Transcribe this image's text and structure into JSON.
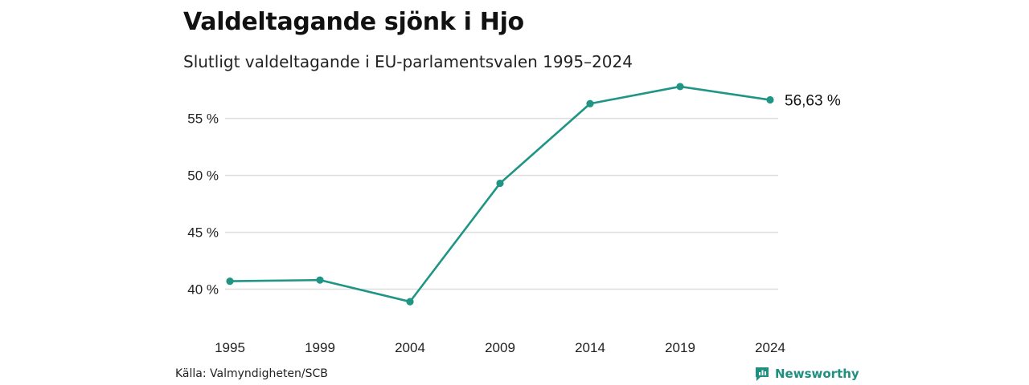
{
  "header": {
    "title": "Valdeltagande sjönk i Hjo",
    "subtitle": "Slutligt valdeltagande i EU-parlamentsvalen 1995–2024"
  },
  "footer": {
    "source": "Källa: Valmyndigheten/SCB",
    "brand": "Newsworthy",
    "brand_icon": "newsworthy-logo-icon",
    "brand_color": "#1f8f7f"
  },
  "chart_data": {
    "type": "line",
    "title": "Valdeltagande sjönk i Hjo",
    "subtitle": "Slutligt valdeltagande i EU-parlamentsvalen 1995–2024",
    "xlabel": "",
    "ylabel": "",
    "x": [
      "1995",
      "1999",
      "2004",
      "2009",
      "2014",
      "2019",
      "2024"
    ],
    "series": [
      {
        "values": [
          40.7,
          40.8,
          38.9,
          49.3,
          56.3,
          57.8,
          56.63
        ],
        "color": "#1f9585"
      }
    ],
    "ylim": [
      37.5,
      58.5
    ],
    "yticks": [
      40,
      45,
      50,
      55
    ],
    "ytick_labels": [
      "40 %",
      "45 %",
      "50 %",
      "55 %"
    ],
    "end_label": "56,63 %",
    "grid": "horizontal",
    "legend": "none"
  }
}
